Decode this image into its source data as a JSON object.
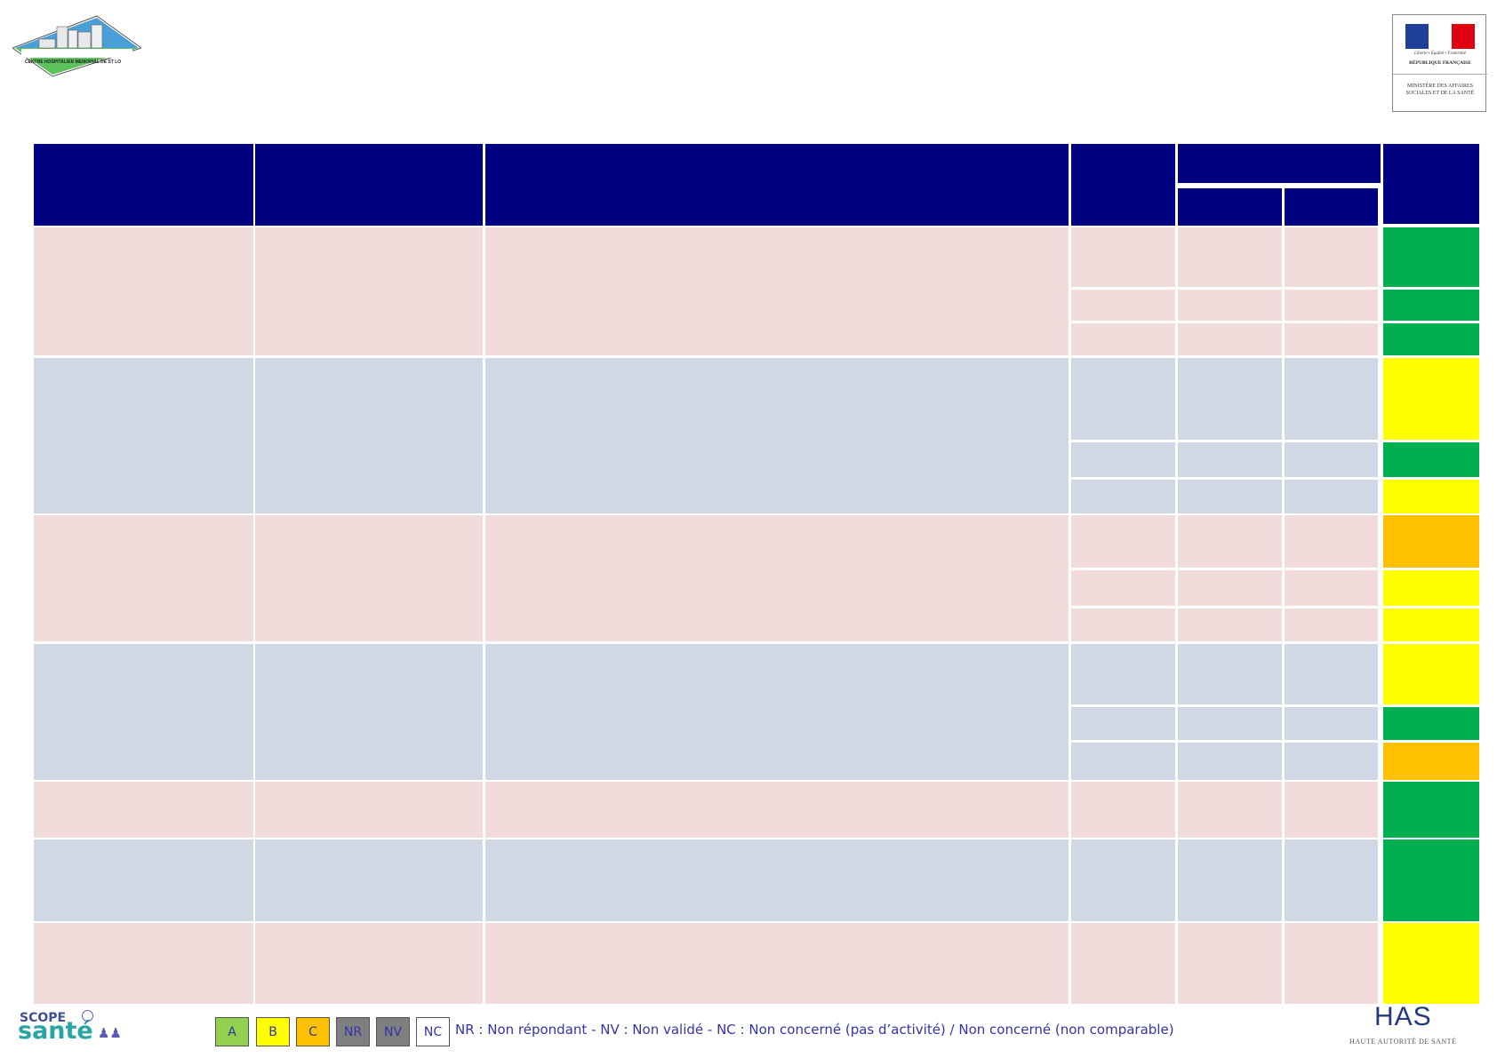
{
  "header": {
    "hospital_logo_text": "CENTRE HOSPITALIER MEMORIAL DE ST LO",
    "ministry_logo": {
      "motto": "Liberté • Égalité • Fraternité",
      "republic": "RÉPUBLIQUE FRANÇAISE",
      "ministry": "MINISTÈRE DES AFFAIRES SOCIALES ET DE LA SANTÉ"
    }
  },
  "table": {
    "row_groups": [
      {
        "shade": "pink",
        "scores": [
          "A",
          "A",
          "A"
        ]
      },
      {
        "shade": "blue",
        "scores": [
          "B",
          "A",
          "B"
        ]
      },
      {
        "shade": "pink",
        "scores": [
          "C",
          "B",
          "B"
        ]
      },
      {
        "shade": "blue",
        "scores": [
          "B",
          "A",
          "C"
        ]
      },
      {
        "shade": "pink",
        "scores": [
          "A"
        ]
      },
      {
        "shade": "blue",
        "scores": [
          "A"
        ]
      },
      {
        "shade": "pink",
        "scores": [
          "B"
        ]
      }
    ]
  },
  "colors": {
    "header": "#000080",
    "A": "#00b050",
    "B": "#ffff00",
    "C": "#ffc000",
    "NR": "#7f7f7f",
    "NV": "#7f7f7f",
    "legend_A": "#92d050"
  },
  "footer": {
    "scope_logo_line1": "SCOPE",
    "scope_logo_line2": "santé",
    "legend": [
      {
        "code": "A",
        "label": "A"
      },
      {
        "code": "B",
        "label": "B"
      },
      {
        "code": "C",
        "label": "C"
      },
      {
        "code": "NR",
        "label": "NR"
      },
      {
        "code": "NV",
        "label": "NV"
      },
      {
        "code": "NC",
        "label": "NC"
      }
    ],
    "legend_text": "NR : Non répondant - NV : Non validé - NC : Non concerné (pas d’activité) / Non concerné (non comparable)",
    "has_logo": "HAS",
    "has_subtitle": "HAUTE AUTORITÉ DE SANTÉ"
  }
}
